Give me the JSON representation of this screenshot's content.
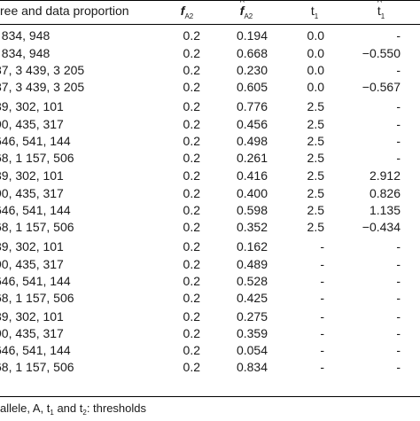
{
  "table": {
    "headers": {
      "label": "ree and data proportion",
      "f": "f",
      "f_sub": "A2",
      "fhat": "f",
      "fhat_sub": "A2",
      "fhat_hat": "^",
      "t": "t",
      "t_sub": "1",
      "that": "t",
      "that_sub": "1",
      "that_hat": "^"
    },
    "rows": [
      {
        "label": ", 834, 948",
        "f": "0.2",
        "fhat": "0.194",
        "t": "0.0",
        "that": "-"
      },
      {
        "label": ", 834, 948",
        "f": "0.2",
        "fhat": "0.668",
        "t": "0.0",
        "that": "−0.550"
      },
      {
        "label": "87, 3 439, 3 205",
        "f": "0.2",
        "fhat": "0.230",
        "t": "0.0",
        "that": "-"
      },
      {
        "label": "87, 3 439, 3 205",
        "f": "0.2",
        "fhat": "0.605",
        "t": "0.0",
        "that": "−0.567"
      },
      {
        "label": "39, 302, 101",
        "f": "0.2",
        "fhat": "0.776",
        "t": "2.5",
        "that": "-"
      },
      {
        "label": "90, 435, 317",
        "f": "0.2",
        "fhat": "0.456",
        "t": "2.5",
        "that": "-"
      },
      {
        "label": "646, 541, 144",
        "f": "0.2",
        "fhat": "0.498",
        "t": "2.5",
        "that": "-"
      },
      {
        "label": "68, 1 157, 506",
        "f": "0.2",
        "fhat": "0.261",
        "t": "2.5",
        "that": "-"
      },
      {
        "label": "39, 302, 101",
        "f": "0.2",
        "fhat": "0.416",
        "t": "2.5",
        "that": "2.912"
      },
      {
        "label": "90, 435, 317",
        "f": "0.2",
        "fhat": "0.400",
        "t": "2.5",
        "that": "0.826"
      },
      {
        "label": "646, 541, 144",
        "f": "0.2",
        "fhat": "0.598",
        "t": "2.5",
        "that": "1.135"
      },
      {
        "label": "68, 1 157, 506",
        "f": "0.2",
        "fhat": "0.352",
        "t": "2.5",
        "that": "−0.434"
      },
      {
        "label": "39, 302, 101",
        "f": "0.2",
        "fhat": "0.162",
        "t": "-",
        "that": "-"
      },
      {
        "label": "90, 435, 317",
        "f": "0.2",
        "fhat": "0.489",
        "t": "-",
        "that": "-"
      },
      {
        "label": "646, 541, 144",
        "f": "0.2",
        "fhat": "0.528",
        "t": "-",
        "that": "-"
      },
      {
        "label": "68, 1 157, 506",
        "f": "0.2",
        "fhat": "0.425",
        "t": "-",
        "that": "-"
      },
      {
        "label": "39, 302, 101",
        "f": "0.2",
        "fhat": "0.275",
        "t": "-",
        "that": "-"
      },
      {
        "label": "90, 435, 317",
        "f": "0.2",
        "fhat": "0.359",
        "t": "-",
        "that": "-"
      },
      {
        "label": "646, 541, 144",
        "f": "0.2",
        "fhat": "0.054",
        "t": "-",
        "that": "-"
      },
      {
        "label": "68, 1 157, 506",
        "f": "0.2",
        "fhat": "0.834",
        "t": "-",
        "that": "-"
      }
    ]
  },
  "footnote": {
    "part1": "allele,    A, t",
    "sub1": "1",
    "part2": " and t",
    "sub2": "2",
    "part3": ":  thresholds"
  }
}
